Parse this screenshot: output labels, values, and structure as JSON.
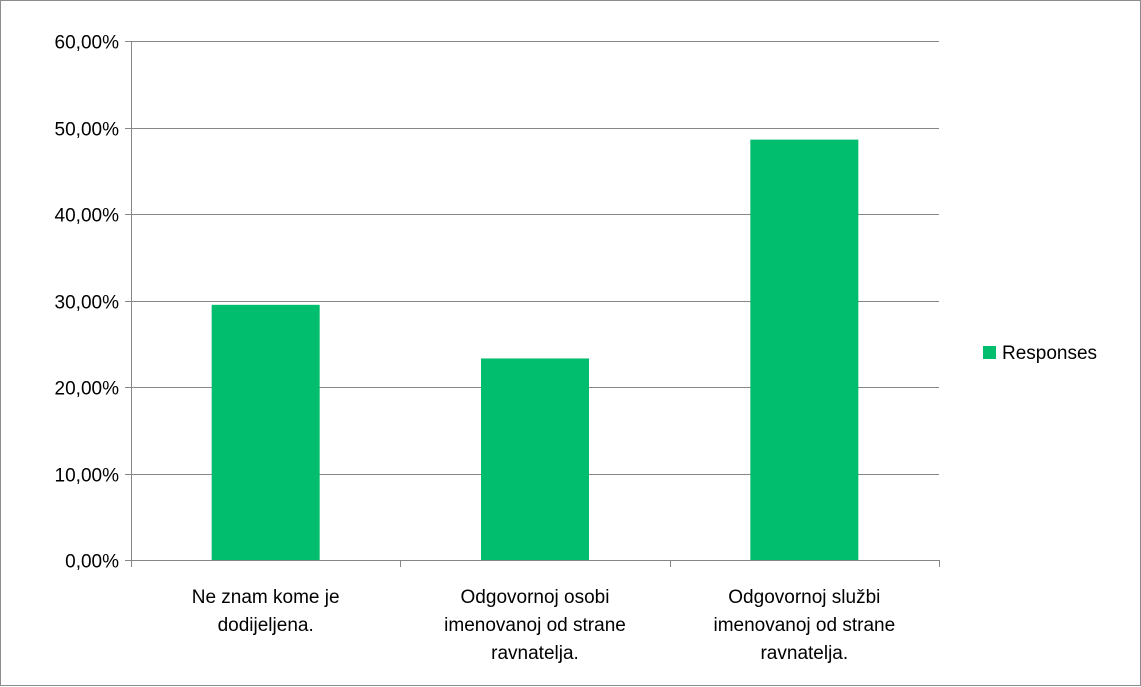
{
  "chart_data": {
    "type": "bar",
    "categories": [
      [
        "Ne znam kome je",
        "dodijeljena."
      ],
      [
        "Odgovornoj osobi",
        "imenovanoj od strane",
        "ravnatelja."
      ],
      [
        "Odgovornoj službi",
        "imenovanoj od strane",
        "ravnatelja."
      ]
    ],
    "series": [
      {
        "name": "Responses",
        "values": [
          29.5,
          23.3,
          48.6
        ],
        "color": "#00be6e"
      }
    ],
    "ylim": [
      0,
      60
    ],
    "ytick_values": [
      0,
      10,
      20,
      30,
      40,
      50,
      60
    ],
    "ytick_labels": [
      "0,00%",
      "10,00%",
      "20,00%",
      "30,00%",
      "40,00%",
      "50,00%",
      "60,00%"
    ],
    "grid": true,
    "legend_position": "right",
    "title": "",
    "xlabel": "",
    "ylabel": ""
  }
}
